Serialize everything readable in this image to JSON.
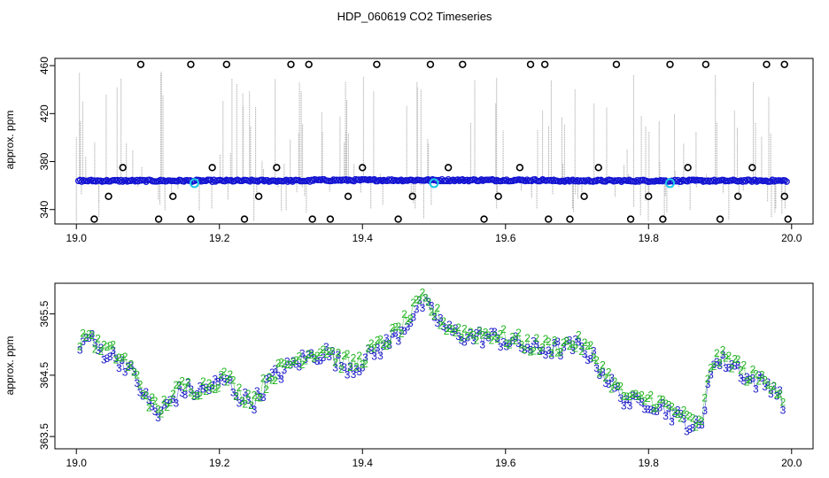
{
  "chart_data": {
    "title": "HDP_060619  CO2 Timeseries",
    "panels": [
      {
        "type": "scatter",
        "xlim": [
          19.0,
          20.0
        ],
        "ylim": [
          328,
          466
        ],
        "ylabel": "approx. ppm",
        "x_ticks": [
          "19.0",
          "19.2",
          "19.4",
          "19.6",
          "19.8",
          "20.0"
        ],
        "y_ticks": [
          "340",
          "380",
          "420",
          "460"
        ],
        "baseline_ppm": 364,
        "highlights": [
          {
            "x": 19.165,
            "y": 362
          },
          {
            "x": 19.5,
            "y": 362
          },
          {
            "x": 19.83,
            "y": 362
          }
        ],
        "outliers_high": [
          19.09,
          19.16,
          19.21,
          19.3,
          19.325,
          19.42,
          19.495,
          19.54,
          19.635,
          19.655,
          19.755,
          19.83,
          19.88,
          19.965,
          19.99
        ],
        "outliers_mid": [
          19.065,
          19.19,
          19.28,
          19.4,
          19.52,
          19.62,
          19.73,
          19.855,
          19.945
        ],
        "outliers_lowmid": [
          19.045,
          19.135,
          19.255,
          19.38,
          19.47,
          19.59,
          19.71,
          19.8,
          19.925,
          19.99
        ],
        "outliers_low": [
          19.025,
          19.115,
          19.16,
          19.235,
          19.33,
          19.355,
          19.45,
          19.57,
          19.66,
          19.69,
          19.775,
          19.82,
          19.9,
          19.995
        ]
      },
      {
        "type": "scatter",
        "xlim": [
          19.0,
          20.0
        ],
        "ylim": [
          363.3,
          366.0
        ],
        "ylabel": "approx. ppm",
        "x_ticks": [
          "19.0",
          "19.2",
          "19.4",
          "19.6",
          "19.8",
          "20.0"
        ],
        "y_ticks": [
          "363.5",
          "364.5",
          "365.5"
        ],
        "series": [
          {
            "name": "3",
            "color": "#1a1ac8"
          },
          {
            "name": "2",
            "color": "#22b422"
          }
        ],
        "trend": {
          "x": [
            19.005,
            19.015,
            19.03,
            19.05,
            19.07,
            19.085,
            19.1,
            19.115,
            19.13,
            19.15,
            19.17,
            19.19,
            19.21,
            19.23,
            19.25,
            19.27,
            19.29,
            19.31,
            19.33,
            19.35,
            19.37,
            19.39,
            19.41,
            19.43,
            19.45,
            19.47,
            19.485,
            19.5,
            19.52,
            19.55,
            19.58,
            19.61,
            19.64,
            19.67,
            19.7,
            19.72,
            19.74,
            19.76,
            19.78,
            19.8,
            19.82,
            19.84,
            19.86,
            19.875,
            19.885,
            19.9,
            19.92,
            19.94,
            19.96,
            19.975,
            19.99
          ],
          "y": [
            364.9,
            365.2,
            364.95,
            364.85,
            364.7,
            364.4,
            364.1,
            363.85,
            364.1,
            364.3,
            364.25,
            364.35,
            364.45,
            364.15,
            364.1,
            364.45,
            364.6,
            364.75,
            364.85,
            364.9,
            364.7,
            364.65,
            364.85,
            365.0,
            365.2,
            365.5,
            365.7,
            365.5,
            365.25,
            365.15,
            365.15,
            365.05,
            364.95,
            364.95,
            365.0,
            364.85,
            364.5,
            364.2,
            364.05,
            364.1,
            364.0,
            363.85,
            363.7,
            363.65,
            364.65,
            364.75,
            364.7,
            364.45,
            364.4,
            364.35,
            364.05
          ]
        }
      }
    ]
  }
}
